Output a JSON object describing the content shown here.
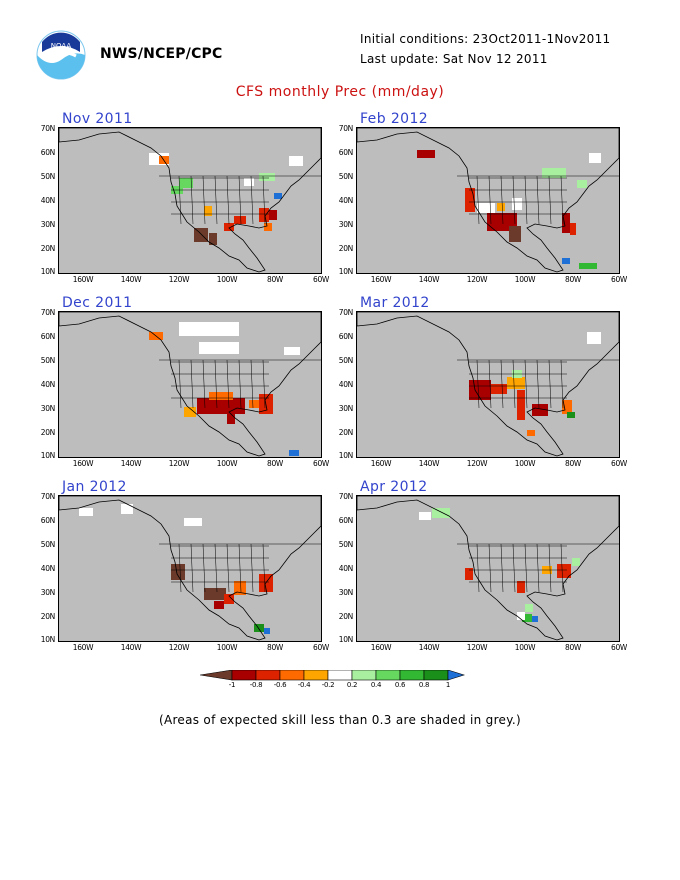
{
  "header": {
    "org": "NWS/NCEP/CPC",
    "initial_conditions": "Initial conditions: 23Oct2011-1Nov2011",
    "last_update": "Last update: Sat Nov 12 2011",
    "title": "CFS monthly Prec (mm/day)",
    "logo_text": "NOAA"
  },
  "panels": [
    {
      "title": "Nov 2011"
    },
    {
      "title": "Feb 2012"
    },
    {
      "title": "Dec 2011"
    },
    {
      "title": "Mar 2012"
    },
    {
      "title": "Jan 2012"
    },
    {
      "title": "Apr 2012"
    }
  ],
  "axes": {
    "lat_labels": [
      "70N",
      "60N",
      "50N",
      "40N",
      "30N",
      "20N",
      "10N"
    ],
    "lon_labels": [
      "160W",
      "140W",
      "120W",
      "100W",
      "80W",
      "60W"
    ]
  },
  "colorbar": {
    "labels": [
      "-1",
      "-0.8",
      "-0.6",
      "-0.4",
      "-0.2",
      "0.2",
      "0.4",
      "0.6",
      "0.8",
      "1"
    ],
    "colors": [
      "#6b3a2a",
      "#a80000",
      "#dd2200",
      "#ff6a00",
      "#ffa500",
      "#ffffff",
      "#a8f0a0",
      "#66d860",
      "#33b833",
      "#1a8f1a",
      "#1e6fd6"
    ]
  },
  "footnote": "(Areas of expected skill less than 0.3 are shaded in grey.)"
}
